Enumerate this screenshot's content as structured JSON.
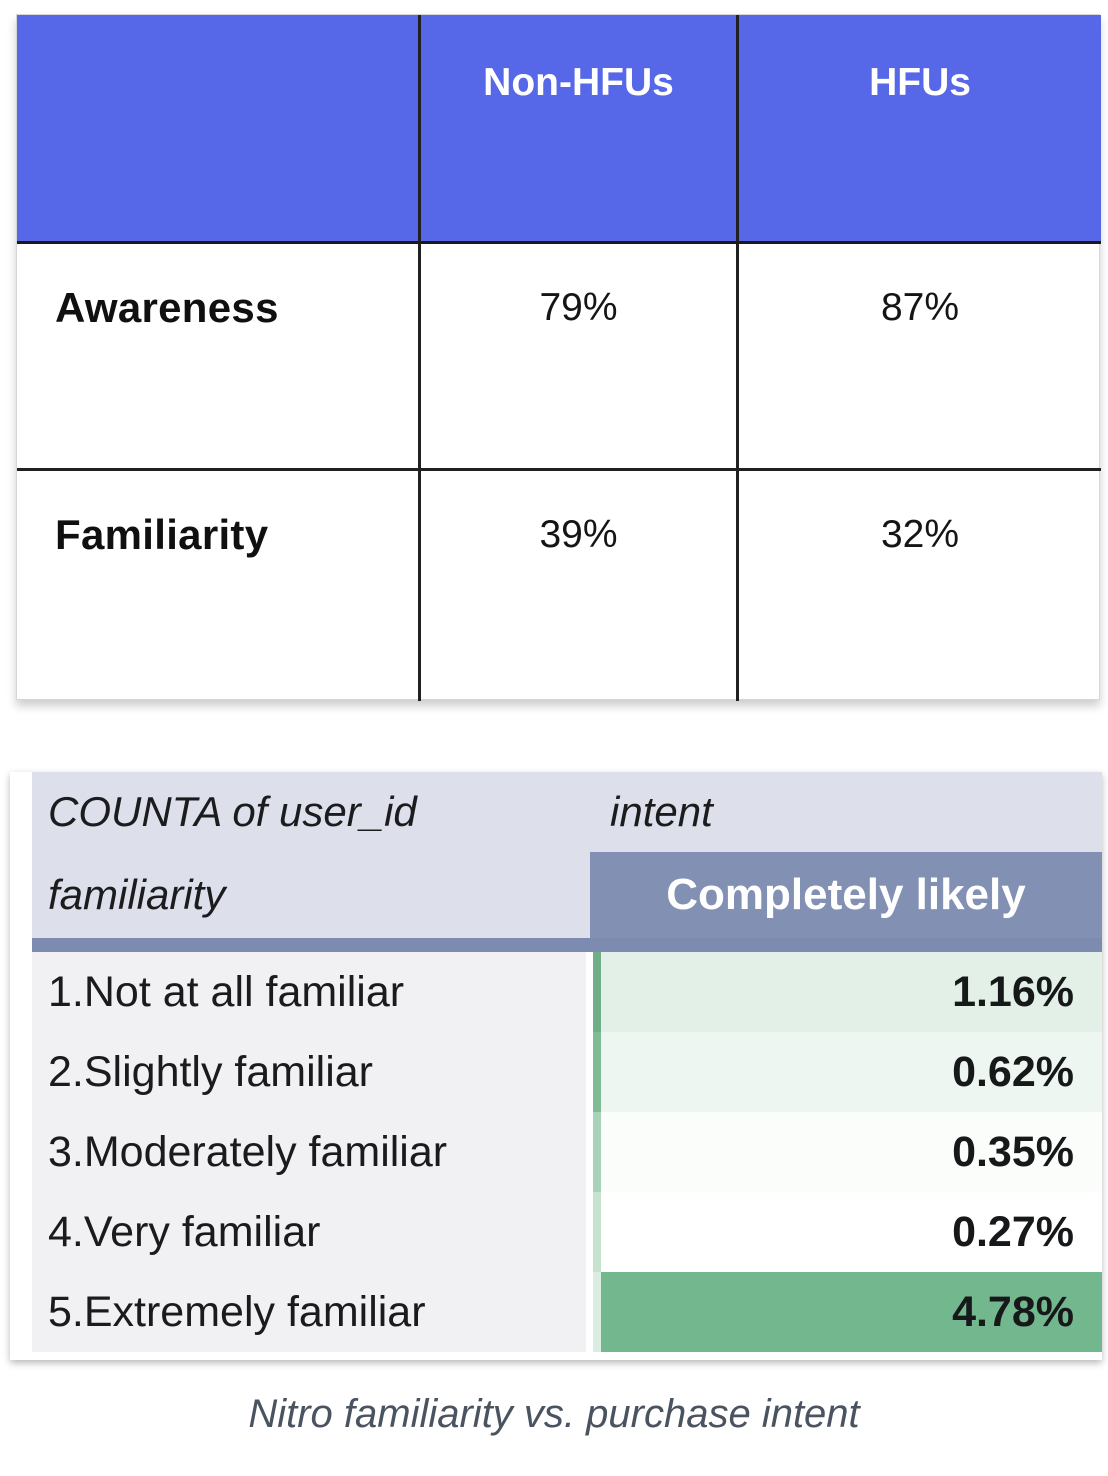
{
  "comparison_table": {
    "header_bg": "#5667E8",
    "col_headers": [
      "Non-HFUs",
      "HFUs"
    ],
    "rows": [
      {
        "label": "Awareness",
        "non_hfus": "79%",
        "hfus": "87%"
      },
      {
        "label": "Familiarity",
        "non_hfus": "39%",
        "hfus": "32%"
      }
    ]
  },
  "pivot_table": {
    "measure_label": "COUNTA of user_id",
    "column_group_label": "intent",
    "row_group_label": "familiarity",
    "value_column_header": "Completely likely",
    "colors": {
      "header_bg": "#DDE0EA",
      "value_header_bg": "#8290B4",
      "divider_bar": "#7D8BB0",
      "label_cell_bg": "#F1F1F4"
    },
    "rows": [
      {
        "label": "1.Not at all familiar",
        "value": "1.16%",
        "cell_bg": "#E2F0E7",
        "strip_color": "#6FAE86"
      },
      {
        "label": "2.Slightly familiar",
        "value": "0.62%",
        "cell_bg": "#EDF6F0",
        "strip_color": "#7FBC95"
      },
      {
        "label": "3.Moderately familiar",
        "value": "0.35%",
        "cell_bg": "#FBFDFB",
        "strip_color": "#A9D3B8"
      },
      {
        "label": "4.Very familiar",
        "value": "0.27%",
        "cell_bg": "#FFFFFF",
        "strip_color": "#C6E3D0"
      },
      {
        "label": "5.Extremely familiar",
        "value": "4.78%",
        "cell_bg": "#72B78E",
        "strip_color": "#D9EDE0"
      }
    ]
  },
  "caption": "Nitro familiarity vs. purchase intent",
  "chart_data": [
    {
      "type": "table",
      "columns": [
        "",
        "Non-HFUs",
        "HFUs"
      ],
      "rows": [
        [
          "Awareness",
          "79%",
          "87%"
        ],
        [
          "Familiarity",
          "39%",
          "32%"
        ]
      ]
    },
    {
      "type": "table",
      "title": "Nitro familiarity vs. purchase intent",
      "measure": "COUNTA of user_id",
      "column_group": "intent",
      "columns": [
        "familiarity",
        "Completely likely"
      ],
      "rows": [
        [
          "1.Not at all familiar",
          "1.16%"
        ],
        [
          "2.Slightly familiar",
          "0.62%"
        ],
        [
          "3.Moderately familiar",
          "0.35%"
        ],
        [
          "4.Very familiar",
          "0.27%"
        ],
        [
          "5.Extremely familiar",
          "4.78%"
        ]
      ]
    }
  ]
}
